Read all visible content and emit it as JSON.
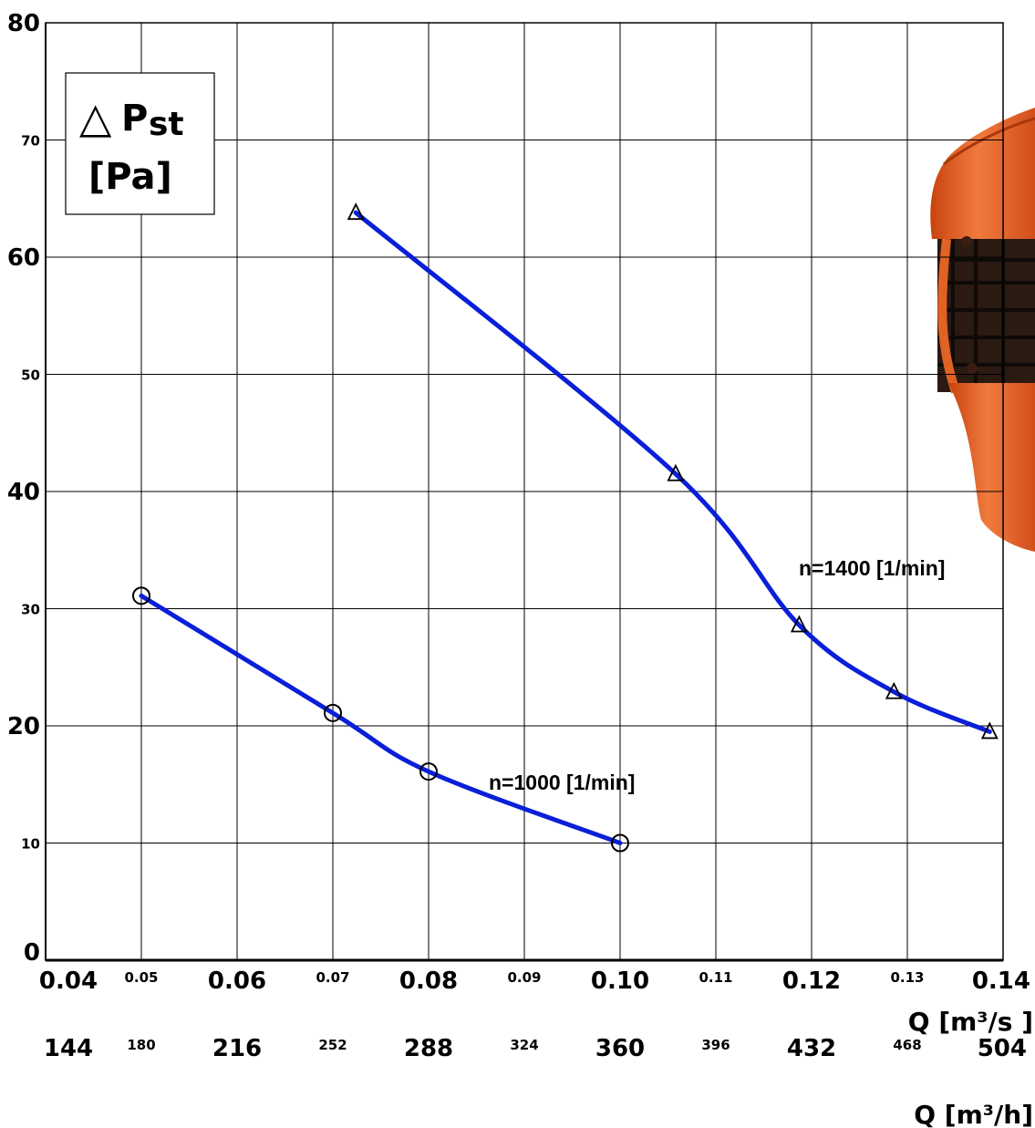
{
  "chart_data": {
    "type": "line",
    "ylabel": {
      "symbol": "△",
      "main": "P",
      "sub": "st",
      "unit": "[Pa]"
    },
    "xlabel_primary": "Q [m³/s ]",
    "xlabel_secondary": "Q [m³/h]",
    "xlim": [
      0.04,
      0.14
    ],
    "ylim": [
      0,
      80
    ],
    "grid": true,
    "x_ticks": [
      {
        "value": 0.04,
        "label": "0.04",
        "major": true
      },
      {
        "value": 0.05,
        "label": "0.05",
        "major": false
      },
      {
        "value": 0.06,
        "label": "0.06",
        "major": true
      },
      {
        "value": 0.07,
        "label": "0.07",
        "major": false
      },
      {
        "value": 0.08,
        "label": "0.08",
        "major": true
      },
      {
        "value": 0.09,
        "label": "0.09",
        "major": false
      },
      {
        "value": 0.1,
        "label": "0.10",
        "major": true
      },
      {
        "value": 0.11,
        "label": "0.11",
        "major": false
      },
      {
        "value": 0.12,
        "label": "0.12",
        "major": true
      },
      {
        "value": 0.13,
        "label": "0.13",
        "major": false
      },
      {
        "value": 0.14,
        "label": "0.14",
        "major": true
      }
    ],
    "x_ticks_secondary": [
      {
        "value": 0.04,
        "label": "144",
        "major": true
      },
      {
        "value": 0.05,
        "label": "180",
        "major": false
      },
      {
        "value": 0.06,
        "label": "216",
        "major": true
      },
      {
        "value": 0.07,
        "label": "252",
        "major": false
      },
      {
        "value": 0.08,
        "label": "288",
        "major": true
      },
      {
        "value": 0.09,
        "label": "324",
        "major": false
      },
      {
        "value": 0.1,
        "label": "360",
        "major": true
      },
      {
        "value": 0.11,
        "label": "396",
        "major": false
      },
      {
        "value": 0.12,
        "label": "432",
        "major": true
      },
      {
        "value": 0.13,
        "label": "468",
        "major": false
      },
      {
        "value": 0.14,
        "label": "504",
        "major": true
      }
    ],
    "y_ticks": [
      {
        "value": 0,
        "label": "0",
        "major": true
      },
      {
        "value": 10,
        "label": "10",
        "major": false
      },
      {
        "value": 20,
        "label": "20",
        "major": true
      },
      {
        "value": 30,
        "label": "30",
        "major": false
      },
      {
        "value": 40,
        "label": "40",
        "major": true
      },
      {
        "value": 50,
        "label": "50",
        "major": false
      },
      {
        "value": 60,
        "label": "60",
        "major": true
      },
      {
        "value": 70,
        "label": "70",
        "major": false
      },
      {
        "value": 80,
        "label": "80",
        "major": true
      }
    ],
    "series": [
      {
        "name": "n=1000 [1/min]",
        "marker": "circle",
        "color": "#0a1fd8",
        "points": [
          {
            "x": 0.05,
            "y": 31.1
          },
          {
            "x": 0.07,
            "y": 21.1
          },
          {
            "x": 0.08,
            "y": 16.1
          },
          {
            "x": 0.1,
            "y": 10.0
          }
        ]
      },
      {
        "name": "n=1400 [1/min]",
        "marker": "triangle",
        "color": "#0a1fd8",
        "points": [
          {
            "x": 0.0724,
            "y": 63.8
          },
          {
            "x": 0.1058,
            "y": 41.5
          },
          {
            "x": 0.1187,
            "y": 28.6
          },
          {
            "x": 0.1286,
            "y": 22.9
          },
          {
            "x": 0.1386,
            "y": 19.5
          }
        ]
      }
    ],
    "grid_color": "#000000",
    "product_color": "#e35a1e"
  }
}
